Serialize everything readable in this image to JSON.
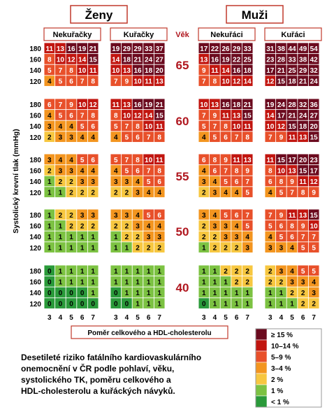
{
  "chart_data": {
    "type": "heatmap",
    "caption_lines": [
      "Desetileté riziko fatálního kardiovaskulárního",
      "onemocnění v ČR podle pohlaví, věku,",
      "systolického TK, poměru celkového a",
      "HDL-cholesterolu a kuřáckých návyků."
    ],
    "sex_labels": [
      "Ženy",
      "Muži"
    ],
    "smoking_labels": [
      "Nekuřačky",
      "Kuřačky",
      "Nekuřáci",
      "Kuřáci"
    ],
    "age_header": "Věk",
    "ages": [
      "65",
      "60",
      "55",
      "50",
      "40"
    ],
    "sbp_values": [
      "180",
      "160",
      "140",
      "120"
    ],
    "ylabel": "Systolický krevní tlak (mmHg)",
    "cholesterol_ratio_values": [
      "3",
      "4",
      "5",
      "6",
      "7"
    ],
    "xlabel": "Poměr celkového a HDL-cholesterolu",
    "legend": [
      {
        "label": "≥ 15 %",
        "color": "#6b0a1e"
      },
      {
        "label": "10–14 %",
        "color": "#c1150f"
      },
      {
        "label": "5–9 %",
        "color": "#e8502a"
      },
      {
        "label": "3–4 %",
        "color": "#f3951f"
      },
      {
        "label": "2 %",
        "color": "#f7c740"
      },
      {
        "label": "1 %",
        "color": "#7cc242"
      },
      {
        "label": "< 1 %",
        "color": "#2a9a3a"
      }
    ],
    "blocks": [
      [
        [
          [
            11,
            13,
            16,
            19,
            21
          ],
          [
            8,
            10,
            12,
            14,
            15
          ],
          [
            5,
            7,
            8,
            10,
            11
          ],
          [
            4,
            5,
            6,
            7,
            8
          ]
        ],
        [
          [
            19,
            29,
            29,
            33,
            37
          ],
          [
            14,
            18,
            21,
            24,
            27
          ],
          [
            10,
            13,
            16,
            18,
            20
          ],
          [
            7,
            9,
            10,
            11,
            13
          ]
        ],
        [
          [
            17,
            22,
            26,
            29,
            33
          ],
          [
            13,
            16,
            19,
            22,
            25
          ],
          [
            9,
            11,
            14,
            16,
            18
          ],
          [
            7,
            8,
            10,
            12,
            14
          ]
        ],
        [
          [
            31,
            38,
            44,
            49,
            54
          ],
          [
            23,
            28,
            33,
            38,
            42
          ],
          [
            17,
            21,
            25,
            29,
            32
          ],
          [
            12,
            15,
            18,
            21,
            24
          ]
        ]
      ],
      [
        [
          [
            6,
            7,
            9,
            10,
            12
          ],
          [
            4,
            5,
            6,
            7,
            8
          ],
          [
            3,
            4,
            4,
            5,
            6
          ],
          [
            2,
            3,
            3,
            4,
            4
          ]
        ],
        [
          [
            11,
            13,
            16,
            19,
            21
          ],
          [
            8,
            10,
            12,
            14,
            15
          ],
          [
            5,
            7,
            8,
            10,
            11
          ],
          [
            4,
            5,
            6,
            7,
            8
          ]
        ],
        [
          [
            10,
            13,
            16,
            18,
            21
          ],
          [
            7,
            9,
            11,
            13,
            15
          ],
          [
            5,
            7,
            8,
            10,
            11
          ],
          [
            4,
            5,
            6,
            7,
            8
          ]
        ],
        [
          [
            19,
            24,
            28,
            32,
            36
          ],
          [
            14,
            17,
            21,
            24,
            27
          ],
          [
            10,
            12,
            15,
            18,
            20
          ],
          [
            7,
            9,
            11,
            13,
            15
          ]
        ]
      ],
      [
        [
          [
            3,
            4,
            4,
            5,
            6
          ],
          [
            2,
            3,
            3,
            4,
            4
          ],
          [
            1,
            2,
            2,
            3,
            3
          ],
          [
            1,
            1,
            2,
            2,
            2
          ]
        ],
        [
          [
            5,
            7,
            8,
            10,
            11
          ],
          [
            4,
            5,
            6,
            7,
            8
          ],
          [
            3,
            3,
            4,
            5,
            6
          ],
          [
            2,
            2,
            3,
            4,
            4
          ]
        ],
        [
          [
            6,
            8,
            9,
            11,
            13
          ],
          [
            4,
            6,
            7,
            8,
            9
          ],
          [
            3,
            4,
            5,
            6,
            7
          ],
          [
            2,
            3,
            4,
            4,
            5
          ]
        ],
        [
          [
            11,
            15,
            17,
            20,
            23
          ],
          [
            8,
            10,
            13,
            15,
            17
          ],
          [
            6,
            8,
            9,
            11,
            12
          ],
          [
            4,
            5,
            7,
            8,
            9
          ]
        ]
      ],
      [
        [
          [
            1,
            2,
            2,
            3,
            3
          ],
          [
            1,
            1,
            2,
            2,
            2
          ],
          [
            1,
            1,
            1,
            1,
            1
          ],
          [
            1,
            1,
            1,
            1,
            1
          ]
        ],
        [
          [
            3,
            3,
            4,
            5,
            6
          ],
          [
            2,
            2,
            3,
            4,
            4
          ],
          [
            1,
            2,
            2,
            3,
            3
          ],
          [
            1,
            1,
            2,
            2,
            2
          ]
        ],
        [
          [
            3,
            4,
            5,
            6,
            7
          ],
          [
            2,
            3,
            3,
            4,
            5
          ],
          [
            2,
            2,
            3,
            3,
            4
          ],
          [
            1,
            2,
            2,
            2,
            3
          ]
        ],
        [
          [
            7,
            9,
            11,
            13,
            15
          ],
          [
            5,
            6,
            8,
            9,
            10
          ],
          [
            4,
            5,
            6,
            7,
            7
          ],
          [
            3,
            3,
            4,
            5,
            5
          ]
        ]
      ],
      [
        [
          [
            0,
            1,
            1,
            1,
            1
          ],
          [
            0,
            1,
            1,
            1,
            1
          ],
          [
            0,
            0,
            0,
            0,
            1
          ],
          [
            0,
            0,
            0,
            0,
            0
          ]
        ],
        [
          [
            1,
            1,
            1,
            1,
            1
          ],
          [
            1,
            1,
            1,
            1,
            1
          ],
          [
            0,
            1,
            1,
            1,
            1
          ],
          [
            0,
            0,
            1,
            1,
            1
          ]
        ],
        [
          [
            1,
            1,
            2,
            2,
            2
          ],
          [
            1,
            1,
            1,
            2,
            2
          ],
          [
            1,
            1,
            1,
            1,
            1
          ],
          [
            0,
            1,
            1,
            1,
            1
          ]
        ],
        [
          [
            2,
            3,
            4,
            5,
            5
          ],
          [
            2,
            2,
            3,
            3,
            4
          ],
          [
            1,
            1,
            2,
            2,
            3
          ],
          [
            1,
            1,
            1,
            2,
            2
          ]
        ]
      ]
    ]
  }
}
